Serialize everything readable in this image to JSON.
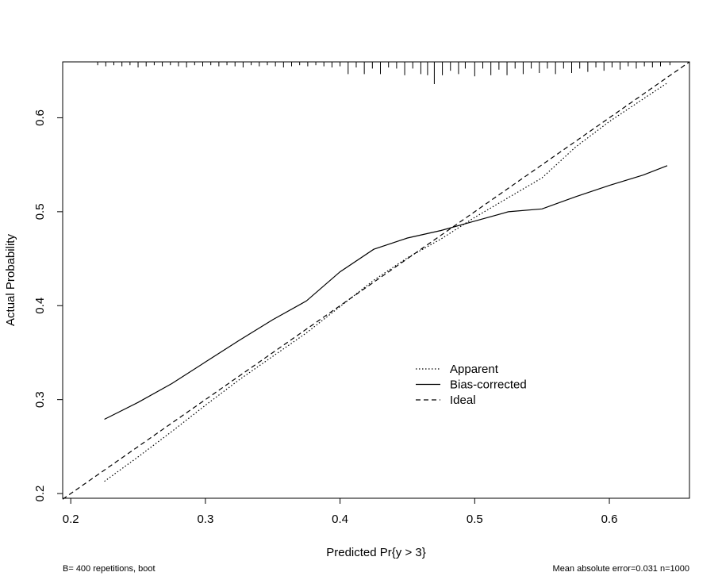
{
  "chart_data": {
    "type": "line",
    "xlabel": "Predicted Pr{y > 3}",
    "ylabel": "Actual Probability",
    "xlim": [
      0.194,
      0.6595
    ],
    "ylim": [
      0.195,
      0.6595
    ],
    "x_ticks": [
      0.2,
      0.3,
      0.4,
      0.5,
      0.6
    ],
    "y_ticks": [
      0.2,
      0.3,
      0.4,
      0.5,
      0.6
    ],
    "x_tick_labels": [
      "0.2",
      "0.3",
      "0.4",
      "0.5",
      "0.6"
    ],
    "y_tick_labels": [
      "0.2",
      "0.3",
      "0.4",
      "0.5",
      "0.6"
    ],
    "legend": {
      "position": "center-right",
      "entries": [
        {
          "label": "Apparent",
          "style": "dotted"
        },
        {
          "label": "Bias-corrected",
          "style": "solid"
        },
        {
          "label": "Ideal",
          "style": "dashed"
        }
      ]
    },
    "series": [
      {
        "name": "Apparent",
        "style": "dotted",
        "x": [
          0.225,
          0.25,
          0.275,
          0.3,
          0.325,
          0.35,
          0.375,
          0.4,
          0.425,
          0.45,
          0.475,
          0.5,
          0.525,
          0.55,
          0.575,
          0.6,
          0.625,
          0.643
        ],
        "y": [
          0.213,
          0.239,
          0.266,
          0.294,
          0.321,
          0.346,
          0.371,
          0.399,
          0.427,
          0.451,
          0.471,
          0.494,
          0.515,
          0.536,
          0.569,
          0.596,
          0.62,
          0.637
        ]
      },
      {
        "name": "Bias-corrected",
        "style": "solid",
        "x": [
          0.225,
          0.25,
          0.275,
          0.3,
          0.325,
          0.35,
          0.375,
          0.4,
          0.425,
          0.45,
          0.475,
          0.5,
          0.525,
          0.55,
          0.575,
          0.6,
          0.625,
          0.643
        ],
        "y": [
          0.279,
          0.297,
          0.317,
          0.34,
          0.363,
          0.385,
          0.405,
          0.436,
          0.46,
          0.472,
          0.48,
          0.49,
          0.5,
          0.503,
          0.516,
          0.528,
          0.539,
          0.549
        ]
      },
      {
        "name": "Ideal",
        "style": "dashed",
        "x": [
          0.194,
          0.6595
        ],
        "y": [
          0.194,
          0.6595
        ]
      }
    ],
    "rug": {
      "x": [
        0.22,
        0.226,
        0.232,
        0.238,
        0.244,
        0.25,
        0.256,
        0.262,
        0.268,
        0.274,
        0.28,
        0.286,
        0.292,
        0.298,
        0.304,
        0.31,
        0.316,
        0.322,
        0.328,
        0.334,
        0.34,
        0.346,
        0.352,
        0.358,
        0.364,
        0.37,
        0.376,
        0.382,
        0.388,
        0.394,
        0.4,
        0.406,
        0.412,
        0.418,
        0.424,
        0.43,
        0.436,
        0.442,
        0.448,
        0.454,
        0.46,
        0.465,
        0.47,
        0.476,
        0.482,
        0.488,
        0.493,
        0.5,
        0.506,
        0.512,
        0.518,
        0.524,
        0.53,
        0.536,
        0.542,
        0.548,
        0.554,
        0.56,
        0.566,
        0.572,
        0.578,
        0.584,
        0.59,
        0.596,
        0.602,
        0.608,
        0.614,
        0.62,
        0.626,
        0.632,
        0.638,
        0.645
      ],
      "heights": [
        0.15,
        0.2,
        0.15,
        0.2,
        0.15,
        0.25,
        0.2,
        0.15,
        0.2,
        0.15,
        0.2,
        0.25,
        0.15,
        0.2,
        0.15,
        0.2,
        0.15,
        0.2,
        0.25,
        0.15,
        0.2,
        0.15,
        0.2,
        0.25,
        0.2,
        0.15,
        0.2,
        0.15,
        0.2,
        0.25,
        0.2,
        0.55,
        0.25,
        0.55,
        0.3,
        0.55,
        0.25,
        0.3,
        0.6,
        0.3,
        0.55,
        0.6,
        1.0,
        0.6,
        0.4,
        0.55,
        0.3,
        0.65,
        0.3,
        0.6,
        0.35,
        0.6,
        0.3,
        0.55,
        0.3,
        0.5,
        0.3,
        0.55,
        0.3,
        0.5,
        0.3,
        0.45,
        0.25,
        0.4,
        0.25,
        0.35,
        0.2,
        0.3,
        0.2,
        0.25,
        0.2,
        0.15
      ]
    },
    "footnote_left": "B= 400 repetitions, boot",
    "footnote_right": "Mean absolute error=0.031 n=1000"
  }
}
